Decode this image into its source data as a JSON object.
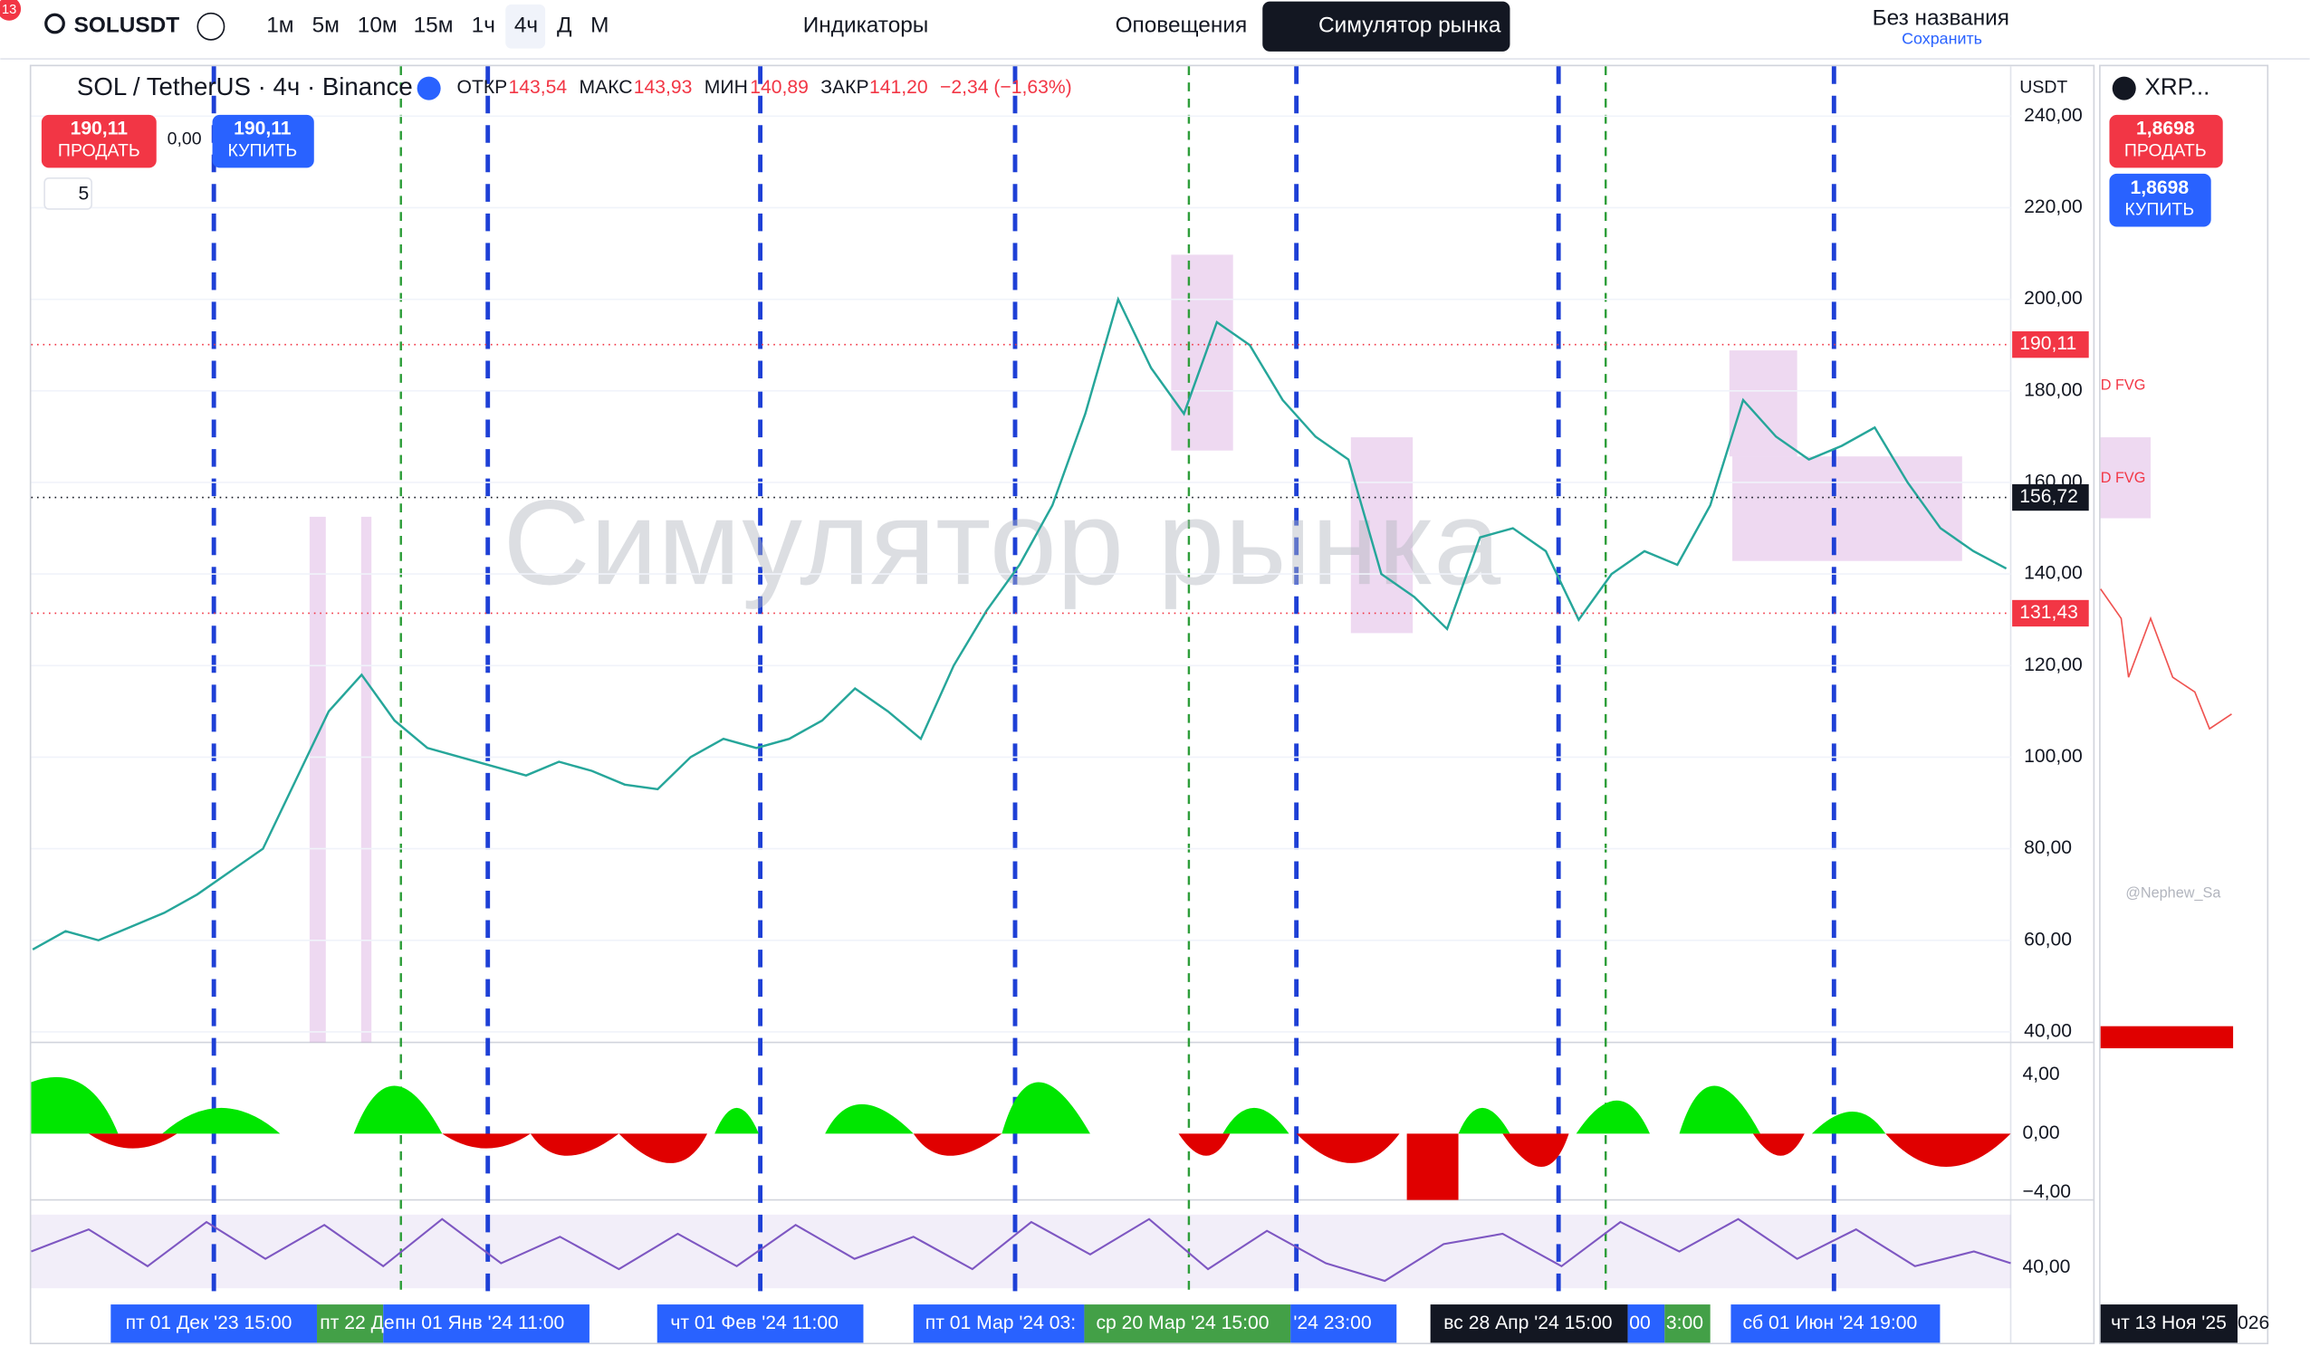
{
  "toolbar": {
    "badge": "13",
    "symbol": "SOLUSDT",
    "intervals": [
      "1м",
      "5м",
      "10м",
      "15м",
      "1ч",
      "4ч",
      "Д",
      "М"
    ],
    "indicators": "Индикаторы",
    "alerts": "Оповещения",
    "replay": "Симулятор рынка",
    "layout_name": "Без названия",
    "save": "Сохранить"
  },
  "legend": {
    "symbol": "SOL / TetherUS · 4ч · Binance",
    "open_label": "ОТКР",
    "open": "143,54",
    "high_label": "МАКС",
    "high": "143,93",
    "low_label": "МИН",
    "low": "140,89",
    "close_label": "ЗАКР",
    "close": "141,20",
    "change": "−2,34 (−1,63%)",
    "currency": "USDT",
    "collapse": "5"
  },
  "trade": {
    "sell_price": "190,11",
    "sell": "ПРОДАТЬ",
    "spread": "0,00",
    "buy_price": "190,11",
    "buy": "КУПИТЬ"
  },
  "watermark": "Симулятор рынка",
  "chart_data": {
    "type": "line",
    "color": "#26a69a",
    "ylim": [
      37.7,
      250.9
    ],
    "yticks": [
      {
        "value": 40,
        "label": "40,00"
      },
      {
        "value": 60,
        "label": "60,00"
      },
      {
        "value": 80,
        "label": "80,00"
      },
      {
        "value": 100,
        "label": "100,00"
      },
      {
        "value": 120,
        "label": "120,00"
      },
      {
        "value": 140,
        "label": "140,00"
      },
      {
        "value": 160,
        "label": "160,00"
      },
      {
        "value": 180,
        "label": "180,00"
      },
      {
        "value": 200,
        "label": "200,00"
      },
      {
        "value": 220,
        "label": "220,00"
      },
      {
        "value": 240,
        "label": "240,00"
      }
    ],
    "grid": true,
    "values": [
      58,
      62,
      60,
      63,
      66,
      70,
      75,
      80,
      95,
      110,
      118,
      108,
      102,
      100,
      98,
      96,
      99,
      97,
      94,
      93,
      100,
      104,
      102,
      104,
      108,
      115,
      110,
      104,
      120,
      132,
      142,
      155,
      175,
      200,
      185,
      175,
      195,
      190,
      178,
      170,
      165,
      140,
      135,
      128,
      148,
      150,
      145,
      130,
      140,
      145,
      142,
      155,
      178,
      170,
      165,
      168,
      172,
      160,
      150,
      145,
      141.2
    ],
    "price_markers": [
      {
        "value": 190.11,
        "label": "190,11",
        "color": "#f23645"
      },
      {
        "value": 156.72,
        "label": "156,72",
        "color": "#131722"
      },
      {
        "value": 131.43,
        "label": "131,43",
        "color": "#f23645"
      }
    ]
  },
  "oscillator_axis": [
    "4,00",
    "0,00",
    "−4,00"
  ],
  "rsi_axis": "40,00",
  "time_axis": [
    "пт 01 Дек '23   15:00",
    "пт 22 Де",
    "пн 01 Янв '24   11:00",
    "чт 01 Фев '24   11:00",
    "пт 01 Мар '24   03:",
    "ср 20 Мар '24   15:00",
    "'24   23:00",
    "вс 28 Апр '24   15:00",
    "00",
    "3:00",
    "сб 01 Июн '24   19:00"
  ],
  "side_chart": {
    "symbol": "XRP...",
    "sell_price": "1,8698",
    "sell": "ПРОДАТЬ",
    "buy_price": "1,8698",
    "buy": "КУПИТЬ",
    "fvg1": "D FVG",
    "fvg2": "D FVG",
    "credit": "@Nephew_Sa",
    "date": "чт 13 Ноя '25",
    "year": "026"
  }
}
